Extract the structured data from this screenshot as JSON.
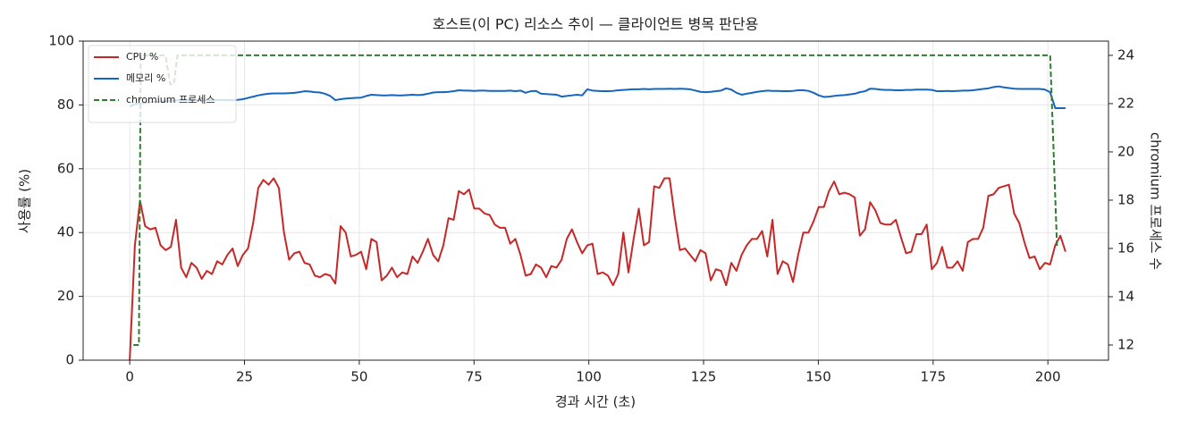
{
  "chart_data": {
    "type": "line",
    "title": "호스트(이 PC) 리소스 추이 — 클라이언트 병목 판단용",
    "xlabel": "경과 시간 (초)",
    "ylabel": "사용률 (%)",
    "y2label": "chromium 프로세스 수",
    "grid": true,
    "legend": "upper left",
    "xlim": [
      -10.15,
      213.2
    ],
    "xticks": [
      0,
      25,
      50,
      75,
      100,
      125,
      150,
      175,
      200
    ],
    "ylim": [
      0,
      100
    ],
    "yticks": [
      0,
      20,
      40,
      60,
      80,
      100
    ],
    "y2lim": [
      11.37,
      24.59
    ],
    "y2ticks": [
      12,
      14,
      16,
      18,
      20,
      22,
      24
    ],
    "x": [
      0,
      1.12,
      2.24,
      3.36,
      4.48,
      5.6,
      6.72,
      7.84,
      8.96,
      10.08,
      11.2,
      12.32,
      13.44,
      14.56,
      15.68,
      16.8,
      17.92,
      19.04,
      20.16,
      21.28,
      22.4,
      23.52,
      24.64,
      25.76,
      26.88,
      28,
      29.12,
      30.24,
      31.36,
      32.48,
      33.6,
      34.72,
      35.84,
      36.96,
      38.08,
      39.2,
      40.32,
      41.44,
      42.56,
      43.68,
      44.8,
      45.92,
      47.04,
      48.16,
      49.28,
      50.4,
      51.52,
      52.64,
      53.76,
      54.88,
      56,
      57.12,
      58.24,
      59.36,
      60.48,
      61.6,
      62.72,
      63.84,
      64.96,
      66.08,
      67.2,
      68.32,
      69.44,
      70.56,
      71.68,
      72.8,
      73.92,
      75.04,
      76.16,
      77.28,
      78.4,
      79.52,
      80.64,
      81.76,
      82.88,
      84,
      85.12,
      86.24,
      87.36,
      88.48,
      89.6,
      90.72,
      91.84,
      92.96,
      94.08,
      95.2,
      96.32,
      97.44,
      98.56,
      99.68,
      100.8,
      101.92,
      103.04,
      104.16,
      105.28,
      106.4,
      107.52,
      108.64,
      109.76,
      110.88,
      112,
      113.12,
      114.24,
      115.36,
      116.48,
      117.6,
      118.72,
      119.84,
      120.96,
      122.08,
      123.2,
      124.32,
      125.44,
      126.56,
      127.68,
      128.8,
      129.92,
      131.04,
      132.16,
      133.28,
      134.4,
      135.52,
      136.64,
      137.76,
      138.88,
      140,
      141.12,
      142.24,
      143.36,
      144.48,
      145.6,
      146.72,
      147.84,
      148.96,
      150.08,
      151.2,
      152.32,
      153.44,
      154.56,
      155.68,
      156.8,
      157.92,
      159.04,
      160.16,
      161.28,
      162.4,
      163.52,
      164.64,
      165.76,
      166.88,
      168,
      169.12,
      170.24,
      171.36,
      172.48,
      173.6,
      174.72,
      175.84,
      176.96,
      178.08,
      179.2,
      180.32,
      181.44,
      182.56,
      183.68,
      184.8,
      185.92,
      187.04,
      188.16,
      189.28,
      190.4,
      191.52,
      192.64,
      193.76,
      194.88,
      196,
      197.12,
      198.24,
      199.36,
      200.48,
      201.6,
      202.72,
      203.84
    ],
    "series": [
      {
        "name": "CPU %",
        "color": "#c62828",
        "values": [
          0,
          36,
          50,
          42,
          41,
          41.5,
          36,
          34.5,
          35.5,
          44,
          29,
          26,
          30.5,
          29,
          25.5,
          28,
          27,
          31,
          30,
          33,
          35,
          29.5,
          33,
          35,
          43,
          54,
          56.5,
          55,
          57,
          54,
          40,
          31.5,
          33.5,
          34,
          30.5,
          30,
          26.5,
          26,
          27,
          26.5,
          24,
          42,
          40,
          32.5,
          33,
          34,
          28.5,
          38,
          37,
          25,
          26.5,
          29,
          26,
          27.5,
          27,
          32.5,
          30.5,
          34,
          38,
          33,
          31,
          36,
          44.5,
          44,
          53,
          52,
          53.5,
          47.5,
          47.5,
          46,
          45.5,
          42.5,
          41.5,
          41.5,
          36.5,
          38,
          33,
          26.5,
          27,
          30,
          29,
          26,
          29.5,
          29,
          31.5,
          38,
          41,
          37,
          33.5,
          36,
          36.5,
          27,
          27.5,
          26.5,
          23.5,
          27,
          40,
          27.5,
          38,
          47.5,
          36,
          37,
          54.5,
          54,
          57,
          57,
          45,
          34.5,
          35,
          33,
          31,
          34.5,
          33.5,
          25,
          28.5,
          28,
          23.5,
          30.5,
          28,
          33,
          36,
          38,
          38,
          40.5,
          32.5,
          44,
          27,
          31,
          30,
          24.5,
          33,
          40,
          40,
          43.5,
          48,
          48,
          53,
          56,
          52,
          52.5,
          52,
          51,
          39,
          41,
          49.5,
          47,
          43,
          42.5,
          42.5,
          44,
          38.5,
          33.5,
          34,
          39.5,
          39.5,
          42.5,
          28.5,
          30.5,
          35.5,
          29,
          29,
          31,
          28,
          37,
          38,
          38,
          41.5,
          51.5,
          52,
          54,
          54.5,
          55,
          46,
          43,
          37,
          32,
          32.5,
          28.5,
          30.5,
          30,
          36,
          39,
          34
        ]
      },
      {
        "name": "메모리 %",
        "color": "#1565c0",
        "values": [
          79.5,
          80.3,
          80.5,
          80.6,
          80.8,
          81,
          81,
          81.2,
          81.3,
          81.4,
          81.5,
          81.5,
          81.6,
          81.5,
          81.5,
          81.6,
          81.5,
          81.5,
          81.6,
          81.5,
          81.5,
          81.6,
          81.8,
          82.2,
          82.6,
          83,
          83.3,
          83.5,
          83.6,
          83.6,
          83.6,
          83.7,
          83.8,
          84,
          84.3,
          84.2,
          84,
          83.9,
          83.5,
          82.8,
          81.5,
          81.8,
          82,
          82.1,
          82.2,
          82.3,
          82.8,
          83.2,
          83.1,
          83,
          83,
          83.1,
          83,
          83,
          83.1,
          83.2,
          83.1,
          83.2,
          83.5,
          83.9,
          84,
          84,
          84.1,
          84.3,
          84.6,
          84.5,
          84.5,
          84.4,
          84.5,
          84.5,
          84.4,
          84.4,
          84.4,
          84.4,
          84.5,
          84.3,
          84.5,
          83.8,
          84.3,
          84.4,
          83.5,
          83.4,
          83.3,
          83.2,
          82.6,
          82.8,
          83,
          83.2,
          83,
          84.9,
          84.5,
          84.4,
          84.3,
          84.3,
          84.4,
          84.6,
          84.7,
          84.8,
          84.9,
          84.9,
          85,
          84.9,
          85,
          85,
          85,
          85.1,
          85,
          85.1,
          85,
          84.9,
          84.5,
          84.1,
          84,
          84.1,
          84.3,
          84.5,
          85.2,
          84.8,
          83.8,
          83.2,
          83.5,
          83.8,
          84.1,
          84.3,
          84.5,
          84.4,
          84.4,
          84.3,
          84.3,
          84.4,
          84.6,
          84.6,
          84.4,
          83.8,
          83,
          82.5,
          82.6,
          82.8,
          83,
          83.1,
          83.3,
          83.5,
          84,
          84.3,
          85.1,
          85,
          84.8,
          84.7,
          84.7,
          84.6,
          84.6,
          84.7,
          84.7,
          84.8,
          84.8,
          84.8,
          84.7,
          84.3,
          84.3,
          84.4,
          84.3,
          84.4,
          84.5,
          84.5,
          84.6,
          84.8,
          85,
          85.2,
          85.6,
          85.8,
          85.5,
          85.3,
          85.1,
          85,
          85,
          85,
          85,
          85,
          84.8,
          84,
          79,
          79,
          79
        ]
      },
      {
        "name": "chromium 프로세스",
        "color": "#2e7d32",
        "dashed": true,
        "axis": "y2",
        "x": [
          0.8,
          2.0,
          2.4,
          7.8,
          8.8,
          9.6,
          10.4,
          200.5,
          202
        ],
        "values": [
          12,
          12,
          24,
          24,
          22.8,
          22.8,
          24,
          24,
          16
        ]
      }
    ]
  }
}
